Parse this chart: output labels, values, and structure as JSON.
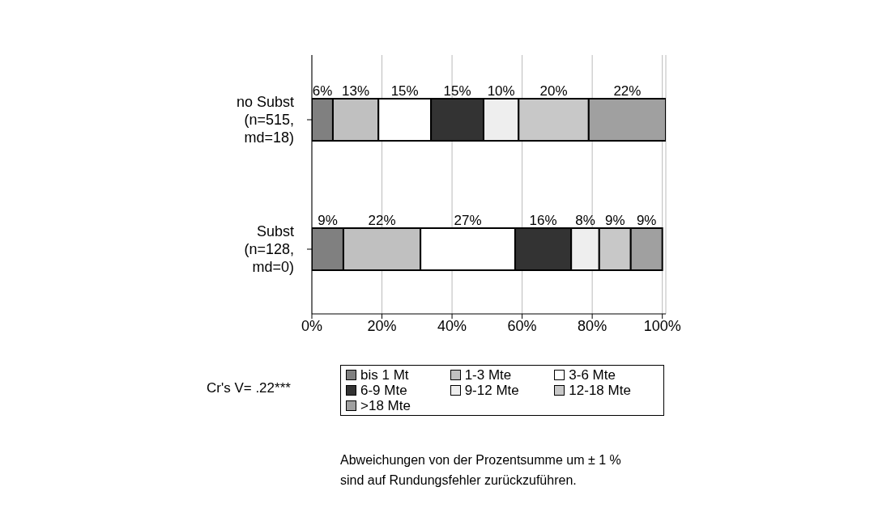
{
  "chart_data": {
    "type": "bar",
    "orientation": "horizontal",
    "stacked": true,
    "categories": [
      "no Subst\n(n=515,\nmd=18)",
      "Subst\n(n=128,\nmd=0)"
    ],
    "series": [
      {
        "name": "bis 1 Mt",
        "color": "#808080",
        "values": [
          6,
          9
        ],
        "value_labels": [
          "6%",
          "9%"
        ]
      },
      {
        "name": "1-3 Mte",
        "color": "#c0c0c0",
        "values": [
          13,
          22
        ],
        "value_labels": [
          "13%",
          "22%"
        ]
      },
      {
        "name": "3-6 Mte",
        "color": "#ffffff",
        "values": [
          15,
          27
        ],
        "value_labels": [
          "15%",
          "27%"
        ]
      },
      {
        "name": "6-9 Mte",
        "color": "#333333",
        "values": [
          15,
          16
        ],
        "value_labels": [
          "15%",
          "16%"
        ]
      },
      {
        "name": "9-12 Mte",
        "color": "#eeeeee",
        "values": [
          10,
          8
        ],
        "value_labels": [
          "10%",
          "8%"
        ]
      },
      {
        "name": "12-18 Mte",
        "color": "#c8c8c8",
        "values": [
          20,
          9
        ],
        "value_labels": [
          "20%",
          "9%"
        ]
      },
      {
        "name": ">18 Mte",
        "color": "#a0a0a0",
        "values": [
          22,
          9
        ],
        "value_labels": [
          "22%",
          "9%"
        ]
      }
    ],
    "xlim": [
      0,
      101
    ],
    "xticks": [
      {
        "value": 0,
        "label": "0%"
      },
      {
        "value": 20,
        "label": "20%"
      },
      {
        "value": 40,
        "label": "40%"
      },
      {
        "value": 60,
        "label": "60%"
      },
      {
        "value": 80,
        "label": "80%"
      },
      {
        "value": 100,
        "label": "100%"
      }
    ],
    "grid": "x",
    "legend": "bottom",
    "annotations": [
      "Cr's V= .22***",
      "Abweichungen von der Prozentsumme um ± 1 %\nsind auf Rundungsfehler zurückzuführen."
    ]
  }
}
